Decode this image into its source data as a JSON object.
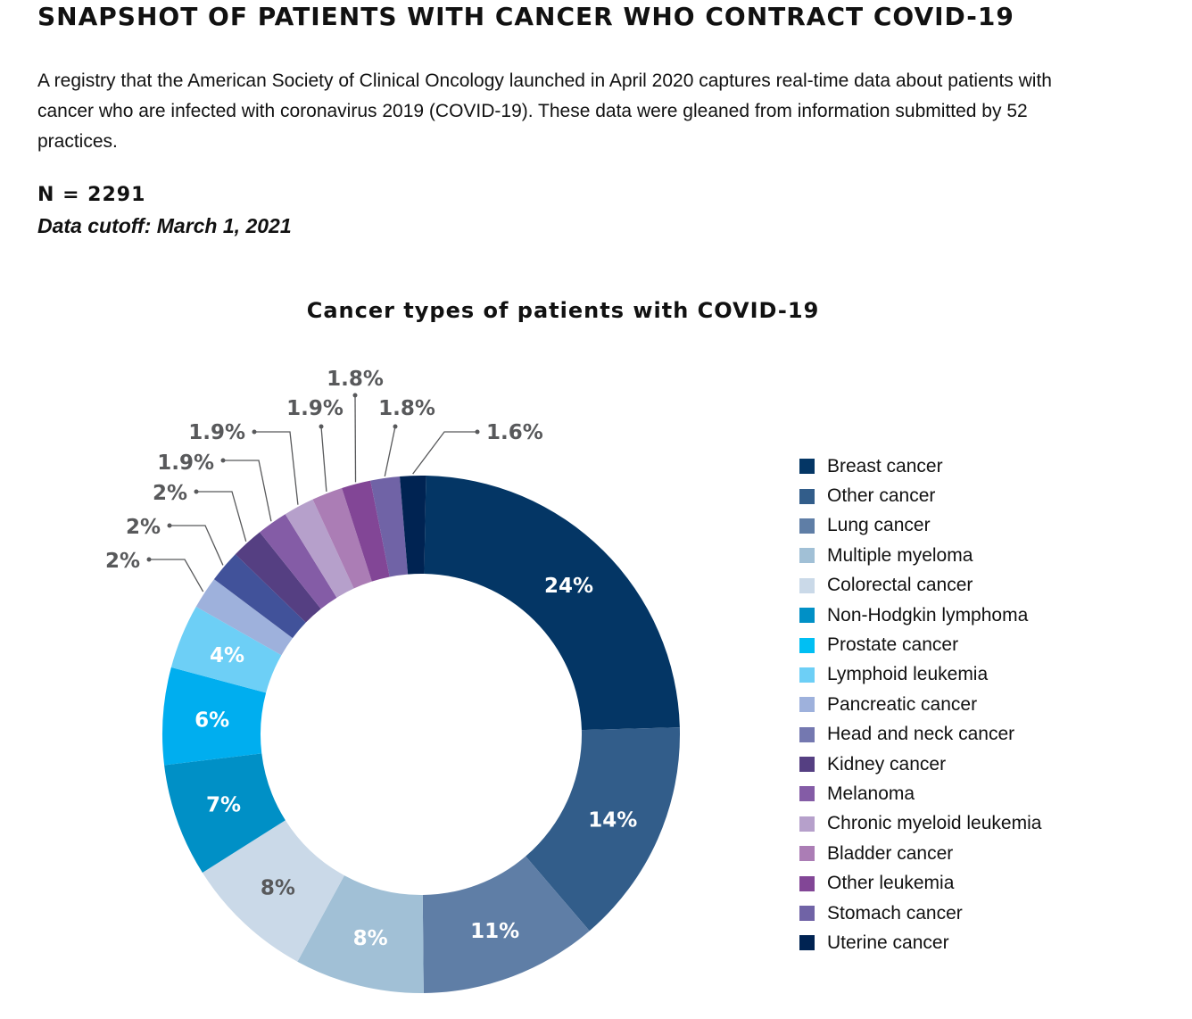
{
  "header": {
    "title": "SNAPSHOT OF PATIENTS WITH CANCER WHO CONTRACT COVID-19",
    "description": "A registry that the American Society of Clinical Oncology launched in April 2020 captures real-time data about patients with cancer who are infected with coronavirus 2019 (COVID-19). These data were gleaned from information submitted by 52 practices.",
    "n": "N = 2291",
    "cutoff": "Data cutoff: March 1, 2021"
  },
  "chart_data": {
    "type": "pie",
    "donut": true,
    "title": "Cancer types of patients with COVID-19",
    "legend_position": "right",
    "categories": [
      "Breast cancer",
      "Other cancer",
      "Lung cancer",
      "Multiple myeloma",
      "Colorectal cancer",
      "Non-Hodgkin lymphoma",
      "Prostate cancer",
      "Lymphoid leukemia",
      "Pancreatic cancer",
      "Head and neck cancer",
      "Kidney cancer",
      "Melanoma",
      "Chronic myeloid leukemia",
      "Bladder cancer",
      "Other leukemia",
      "Stomach cancer",
      "Uterine cancer"
    ],
    "values": [
      24,
      14,
      11,
      8,
      8,
      7,
      6,
      4,
      2,
      2,
      2,
      1.9,
      1.9,
      1.9,
      1.8,
      1.8,
      1.6
    ],
    "labels": [
      "24%",
      "14%",
      "11%",
      "8%",
      "8%",
      "7%",
      "6%",
      "4%",
      "2%",
      "2%",
      "2%",
      "1.9%",
      "1.9%",
      "1.9%",
      "1.8%",
      "1.8%",
      "1.6%"
    ],
    "colors": [
      "#043665",
      "#325d8a",
      "#5f7ea6",
      "#a1c0d6",
      "#cad9e8",
      "#0090c6",
      "#00aeef",
      "#6dcff6",
      "#9eb1dc",
      "#41529a",
      "#553f82",
      "#845ca6",
      "#b6a0cb",
      "#ab7db5",
      "#824696",
      "#7063a6",
      "#002352"
    ],
    "legend_colors": [
      "#043665",
      "#325d8a",
      "#5f7ea6",
      "#a1c0d6",
      "#cad9e8",
      "#0090c6",
      "#00bff3",
      "#6dcff6",
      "#9eb1dc",
      "#7478b0",
      "#553f82",
      "#845ca6",
      "#b6a0cb",
      "#ab7db5",
      "#824696",
      "#7063a6",
      "#002352"
    ],
    "label_colors": [
      "#ffffff",
      "#ffffff",
      "#ffffff",
      "#ffffff",
      "#58595b",
      "#ffffff",
      "#ffffff",
      "#ffffff",
      "#58595b",
      "#58595b",
      "#58595b",
      "#58595b",
      "#58595b",
      "#58595b",
      "#58595b",
      "#58595b",
      "#58595b"
    ]
  }
}
